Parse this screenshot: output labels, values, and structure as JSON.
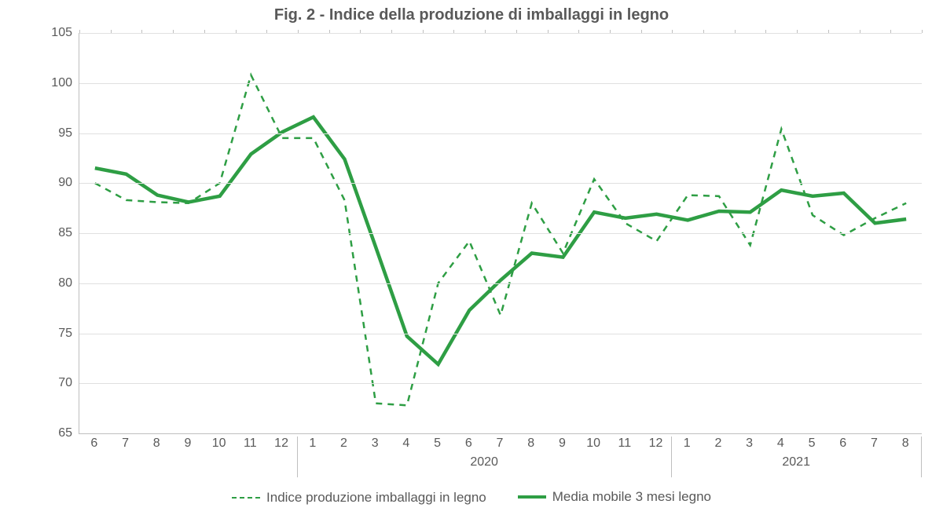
{
  "chart": {
    "type": "line",
    "title": "Fig. 2 - Indice della produzione di imballaggi in legno",
    "title_fontsize": 20,
    "title_color": "#595959",
    "background_color": "#ffffff",
    "plot_border_color": "#bfbfbf",
    "grid_color": "#e0e0e0",
    "tick_font_color": "#595959",
    "tick_fontsize": 16,
    "y": {
      "min": 65,
      "max": 105,
      "step": 5
    },
    "x_categories": [
      {
        "month": "6"
      },
      {
        "month": "7"
      },
      {
        "month": "8"
      },
      {
        "month": "9"
      },
      {
        "month": "10"
      },
      {
        "month": "11"
      },
      {
        "month": "12"
      },
      {
        "month": "1",
        "year_group": "2020"
      },
      {
        "month": "2"
      },
      {
        "month": "3"
      },
      {
        "month": "4"
      },
      {
        "month": "5"
      },
      {
        "month": "6"
      },
      {
        "month": "7"
      },
      {
        "month": "8"
      },
      {
        "month": "9"
      },
      {
        "month": "10"
      },
      {
        "month": "11"
      },
      {
        "month": "12"
      },
      {
        "month": "1",
        "year_group": "2021"
      },
      {
        "month": "2"
      },
      {
        "month": "3"
      },
      {
        "month": "4"
      },
      {
        "month": "5"
      },
      {
        "month": "6"
      },
      {
        "month": "7"
      },
      {
        "month": "8"
      }
    ],
    "year_separators_after_index": [
      6,
      18
    ],
    "year_labels": [
      {
        "label": "2020",
        "center_index_range": [
          7,
          18
        ]
      },
      {
        "label": "2021",
        "center_index_range": [
          19,
          26
        ]
      }
    ],
    "series": [
      {
        "key": "indice",
        "label": "Indice produzione imballaggi in legno",
        "color": "#2e9e44",
        "line_width": 2.5,
        "dash": "8 7",
        "values": [
          90.0,
          88.3,
          88.1,
          88.0,
          90.0,
          100.8,
          94.5,
          94.5,
          88.3,
          68.0,
          67.8,
          80.0,
          84.2,
          76.8,
          88.0,
          83.0,
          90.4,
          86.0,
          84.2,
          88.8,
          88.7,
          83.8,
          95.4,
          86.8,
          84.8,
          86.5,
          88.0
        ]
      },
      {
        "key": "media3",
        "label": "Media mobile 3 mesi  legno",
        "color": "#2e9e44",
        "line_width": 4.5,
        "dash": null,
        "values": [
          91.5,
          90.9,
          88.8,
          88.1,
          88.7,
          92.9,
          95.1,
          96.6,
          92.4,
          83.6,
          74.7,
          71.9,
          77.3,
          80.3,
          83.0,
          82.6,
          87.1,
          86.5,
          86.9,
          86.3,
          87.2,
          87.1,
          89.3,
          88.7,
          89.0,
          86.0,
          86.4
        ]
      }
    ],
    "legend": {
      "position": "bottom",
      "fontsize": 17,
      "text_color": "#595959"
    }
  }
}
